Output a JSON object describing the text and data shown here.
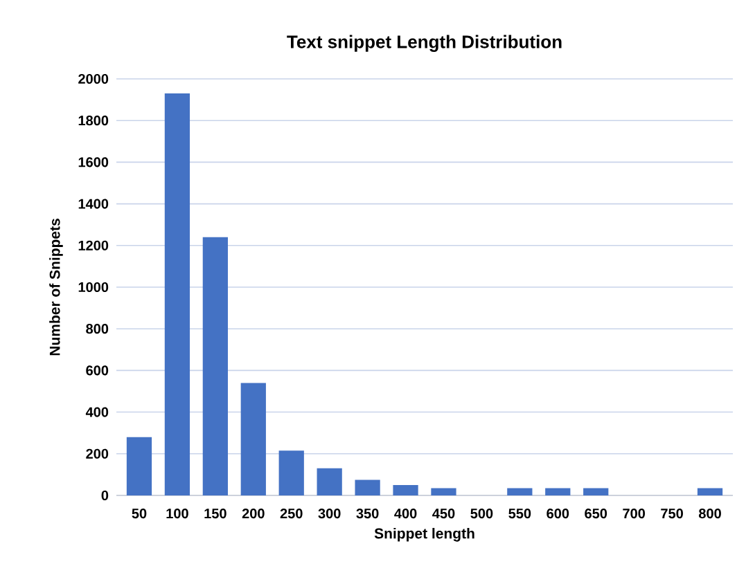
{
  "chart_data": {
    "type": "bar",
    "title": "Text snippet Length Distribution",
    "xlabel": "Snippet length",
    "ylabel": "Number of Snippets",
    "categories": [
      "50",
      "100",
      "150",
      "200",
      "250",
      "300",
      "350",
      "400",
      "450",
      "500",
      "550",
      "600",
      "650",
      "700",
      "750",
      "800"
    ],
    "values": [
      280,
      1930,
      1240,
      540,
      215,
      130,
      75,
      50,
      35,
      0,
      35,
      35,
      35,
      0,
      0,
      35
    ],
    "color": "#4472c4",
    "ylim": [
      0,
      2000
    ],
    "yticks": [
      0,
      200,
      400,
      600,
      800,
      1000,
      1200,
      1400,
      1600,
      1800,
      2000
    ],
    "grid": "y"
  }
}
